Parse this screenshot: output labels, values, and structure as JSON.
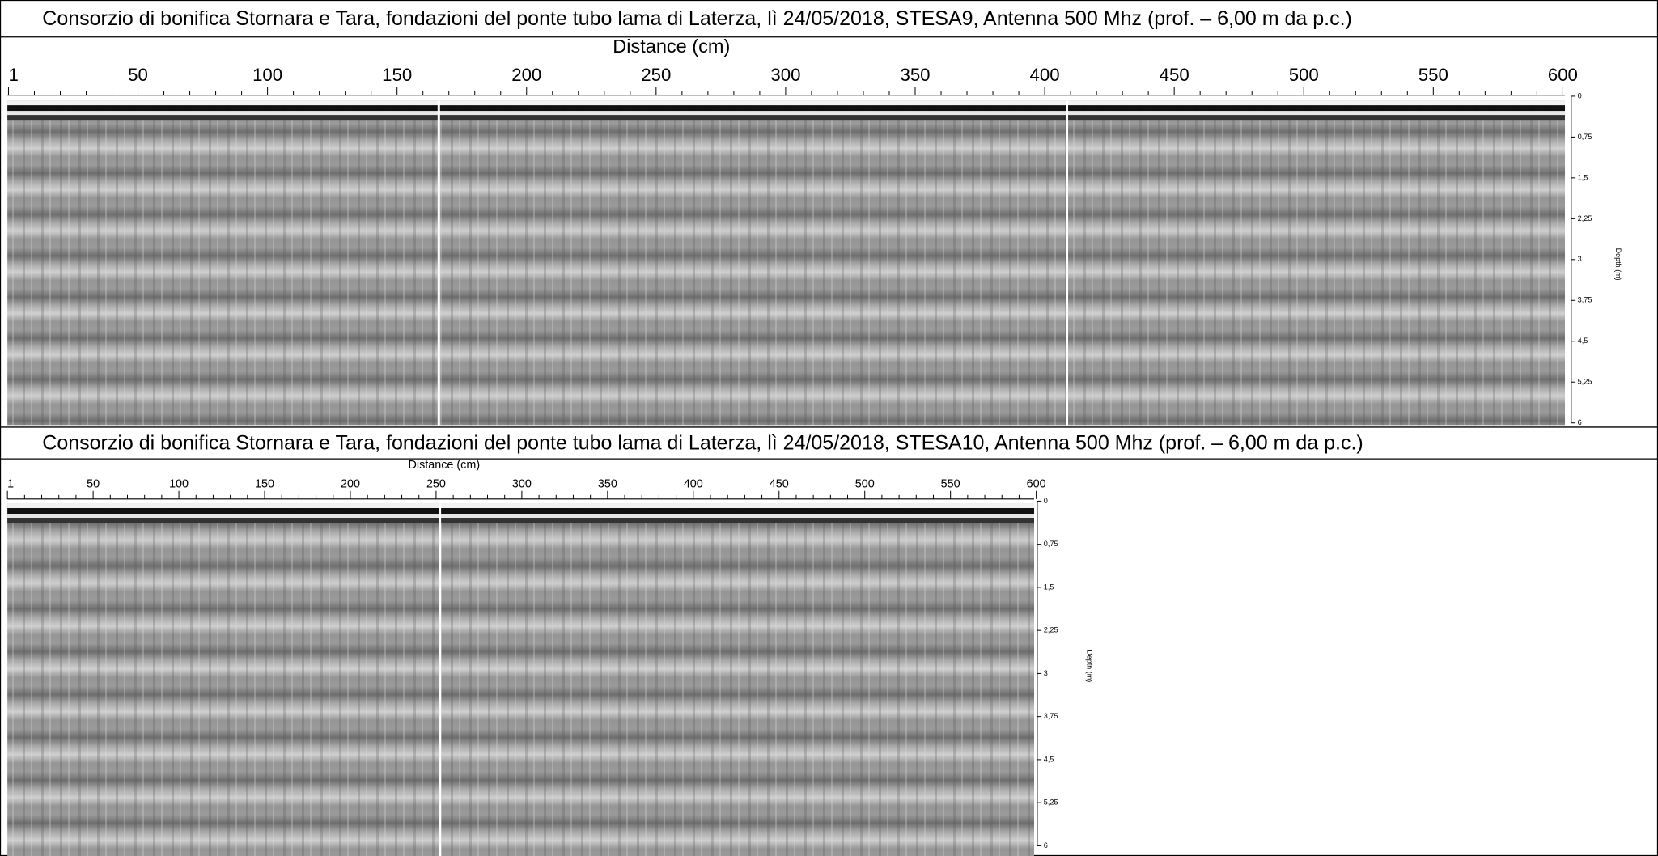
{
  "panels": [
    {
      "title": "Consorzio di bonifica Stornara e Tara, fondazioni del ponte tubo lama di Laterza, lì 24/05/2018, STESA9, Antenna 500 Mhz  (prof. – 6,00 m da p.c.)",
      "x_axis_label": "Distance  (cm)",
      "x_ticks": [
        "1",
        "50",
        "100",
        "150",
        "200",
        "250",
        "300",
        "350",
        "400",
        "450",
        "500",
        "550",
        "600"
      ],
      "y_axis_label": "Depth (m)",
      "y_ticks": [
        "0",
        "0,75",
        "1,5",
        "2,25",
        "3",
        "3,75",
        "4,5",
        "5,25",
        "6"
      ]
    },
    {
      "title": "Consorzio di bonifica Stornara e Tara, fondazioni del ponte tubo lama di Laterza, lì 24/05/2018, STESA10, Antenna 500 Mhz  (prof. – 6,00 m da p.c.)",
      "x_axis_label": "Distance  (cm)",
      "x_ticks": [
        "1",
        "50",
        "100",
        "150",
        "200",
        "250",
        "300",
        "350",
        "400",
        "450",
        "500",
        "550",
        "600"
      ],
      "y_axis_label": "Depth (m)",
      "y_ticks": [
        "0",
        "0,75",
        "1,5",
        "2,25",
        "3",
        "3,75",
        "4,5",
        "5,25",
        "6"
      ]
    }
  ]
}
